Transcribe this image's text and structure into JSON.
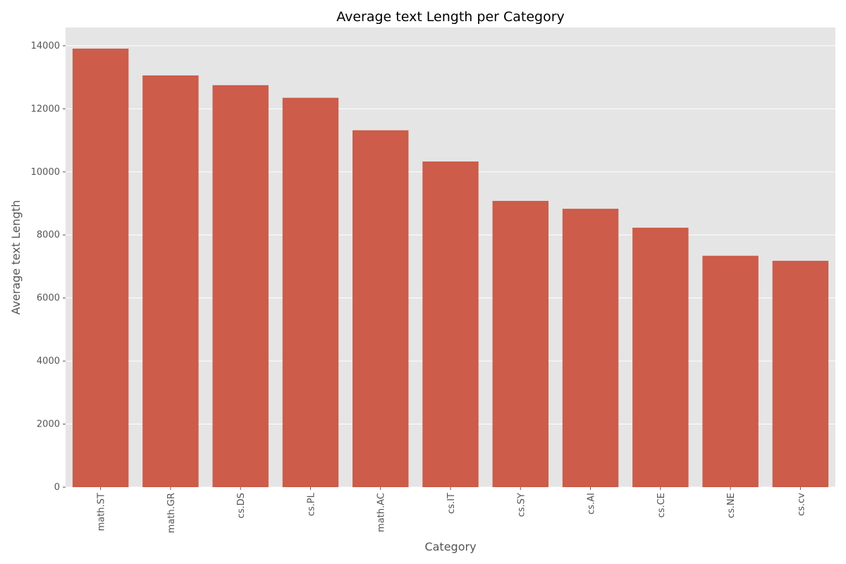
{
  "chart_data": {
    "type": "bar",
    "title": "Average text Length per Category",
    "x_label": "Category",
    "y_label": "Average text Length",
    "categories": [
      "math.ST",
      "math.GR",
      "cs.DS",
      "cs.PL",
      "math.AC",
      "cs.IT",
      "cs.SY",
      "cs.AI",
      "cs.CE",
      "cs.NE",
      "cs.cv"
    ],
    "values": [
      13910,
      13060,
      12750,
      12350,
      11320,
      10330,
      9080,
      8830,
      8230,
      7340,
      7180
    ],
    "color": "#cd5c4a",
    "ylim": [
      0,
      14580
    ],
    "yticks": [
      0,
      2000,
      4000,
      6000,
      8000,
      10000,
      12000,
      14000
    ],
    "grid": true
  }
}
